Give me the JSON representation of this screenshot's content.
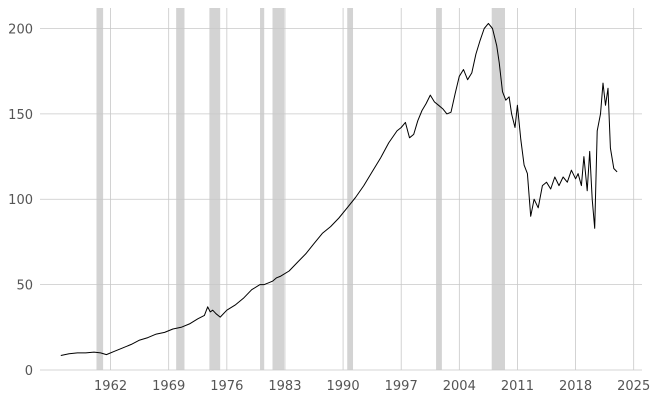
{
  "chart_data": {
    "type": "line",
    "title": "",
    "xlabel": "",
    "ylabel": "",
    "xlim": [
      1953.5,
      2026.0
    ],
    "ylim": [
      0,
      212
    ],
    "grid": true,
    "x_ticks": [
      1962,
      1969,
      1976,
      1983,
      1990,
      1997,
      2004,
      2011,
      2018,
      2025
    ],
    "y_ticks": [
      0,
      50,
      100,
      150,
      200
    ],
    "shaded_periods": [
      [
        1960.3,
        1961.1
      ],
      [
        1969.9,
        1970.9
      ],
      [
        1973.9,
        1975.2
      ],
      [
        1980.0,
        1980.5
      ],
      [
        1981.5,
        1982.9
      ],
      [
        1990.5,
        1991.2
      ],
      [
        2001.2,
        2001.9
      ],
      [
        2007.9,
        2009.5
      ]
    ],
    "shade_color": "#d3d3d3",
    "line_color": "#000000",
    "series": [
      {
        "x": [
          1956.0,
          1957.0,
          1958.0,
          1959.0,
          1960.0,
          1960.8,
          1961.5,
          1962.5,
          1963.5,
          1964.5,
          1965.5,
          1966.5,
          1967.5,
          1968.5,
          1969.5,
          1970.5,
          1971.5,
          1972.5,
          1973.3,
          1973.7,
          1974.0,
          1974.3,
          1974.7,
          1975.2,
          1976.0,
          1977.0,
          1978.0,
          1979.0,
          1980.0,
          1980.5,
          1981.0,
          1981.5,
          1982.0,
          1982.5,
          1983.5,
          1984.5,
          1985.5,
          1986.5,
          1987.5,
          1988.5,
          1989.5,
          1990.5,
          1991.5,
          1992.5,
          1993.5,
          1994.5,
          1995.5,
          1996.5,
          1997.0,
          1997.5,
          1998.0,
          1998.5,
          1999.0,
          1999.5,
          2000.0,
          2000.5,
          2001.0,
          2001.5,
          2002.0,
          2002.5,
          2003.0,
          2003.5,
          2004.0,
          2004.5,
          2005.0,
          2005.5,
          2006.0,
          2006.5,
          2007.0,
          2007.5,
          2008.0,
          2008.5,
          2008.8,
          2009.2,
          2009.6,
          2010.0,
          2010.3,
          2010.7,
          2011.0,
          2011.4,
          2011.8,
          2012.2,
          2012.6,
          2013.0,
          2013.5,
          2014.0,
          2014.5,
          2015.0,
          2015.5,
          2016.0,
          2016.5,
          2017.0,
          2017.5,
          2018.0,
          2018.3,
          2018.7,
          2019.0,
          2019.4,
          2019.7,
          2020.0,
          2020.3,
          2020.6,
          2021.0,
          2021.3,
          2021.6,
          2021.9,
          2022.2,
          2022.6,
          2023.0
        ],
        "y": [
          8.5,
          9.5,
          10,
          10,
          10.5,
          10,
          9,
          11,
          13,
          15,
          17.5,
          19,
          21,
          22,
          24,
          25,
          27,
          30,
          32,
          37,
          34,
          35,
          33,
          31,
          35,
          38,
          42,
          47,
          50,
          50,
          51,
          52,
          54,
          55,
          58,
          63,
          68,
          74,
          80,
          84,
          89,
          95,
          101,
          108,
          116,
          124,
          133,
          140,
          142,
          145,
          136,
          138,
          146,
          152,
          156,
          161,
          157,
          155,
          153,
          150,
          151,
          162,
          172,
          176,
          170,
          174,
          185,
          193,
          200,
          203,
          200,
          190,
          180,
          163,
          158,
          160,
          150,
          142,
          155,
          135,
          120,
          115,
          90,
          100,
          95,
          108,
          110,
          106,
          113,
          108,
          113,
          110,
          117,
          112,
          115,
          108,
          125,
          105,
          128,
          100,
          83,
          140,
          150,
          168,
          155,
          165,
          130,
          118,
          116
        ]
      }
    ]
  }
}
